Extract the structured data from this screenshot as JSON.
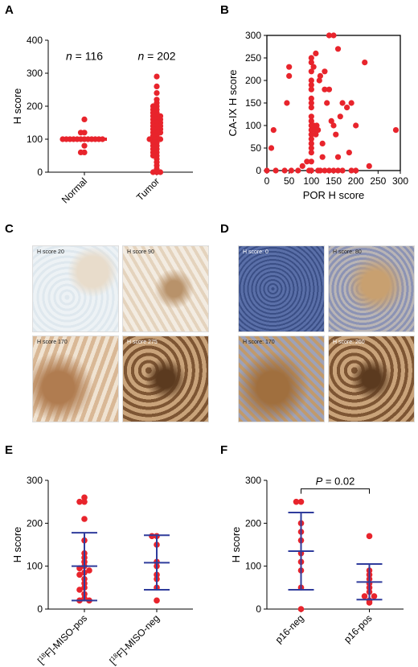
{
  "panels": {
    "A": {
      "letter": "A",
      "chart_data": {
        "type": "scatter",
        "ylabel": "H score",
        "ylim": [
          0,
          400
        ],
        "yticks": [
          0,
          100,
          200,
          300,
          400
        ],
        "categories": [
          "Normal",
          "Tumor"
        ],
        "annotations": [
          "n = 116",
          "n = 202"
        ],
        "groups": [
          {
            "category": "Normal",
            "median": 100,
            "values": [
              160,
              120,
              120,
              100,
              100,
              100,
              100,
              100,
              100,
              100,
              100,
              100,
              100,
              100,
              100,
              80,
              60,
              60
            ]
          },
          {
            "category": "Tumor",
            "values": [
              290,
              260,
              240,
              220,
              210,
              200,
              200,
              190,
              190,
              180,
              180,
              170,
              170,
              170,
              160,
              160,
              160,
              150,
              150,
              150,
              140,
              140,
              140,
              130,
              130,
              130,
              120,
              120,
              120,
              110,
              110,
              100,
              100,
              100,
              100,
              90,
              90,
              80,
              80,
              70,
              70,
              60,
              60,
              50,
              50,
              40,
              30,
              20,
              10,
              0,
              0,
              0
            ]
          }
        ],
        "point_color": "#e8242c"
      }
    },
    "B": {
      "letter": "B",
      "chart_data": {
        "type": "scatter",
        "xlabel": "POR H score",
        "ylabel": "CA-IX H score",
        "xlim": [
          0,
          300
        ],
        "ylim": [
          0,
          300
        ],
        "xticks": [
          0,
          50,
          100,
          150,
          200,
          250,
          300
        ],
        "yticks": [
          0,
          50,
          100,
          150,
          200,
          250,
          300
        ],
        "points": [
          [
            0,
            0
          ],
          [
            10,
            50
          ],
          [
            15,
            90
          ],
          [
            20,
            0
          ],
          [
            40,
            0
          ],
          [
            45,
            150
          ],
          [
            50,
            230
          ],
          [
            50,
            210
          ],
          [
            55,
            0
          ],
          [
            70,
            0
          ],
          [
            80,
            10
          ],
          [
            90,
            20
          ],
          [
            95,
            0
          ],
          [
            100,
            250
          ],
          [
            100,
            240
          ],
          [
            100,
            220
          ],
          [
            100,
            200
          ],
          [
            100,
            190
          ],
          [
            100,
            180
          ],
          [
            100,
            160
          ],
          [
            100,
            150
          ],
          [
            100,
            140
          ],
          [
            100,
            120
          ],
          [
            100,
            110
          ],
          [
            100,
            100
          ],
          [
            100,
            90
          ],
          [
            100,
            80
          ],
          [
            100,
            70
          ],
          [
            100,
            60
          ],
          [
            100,
            50
          ],
          [
            100,
            40
          ],
          [
            100,
            20
          ],
          [
            100,
            0
          ],
          [
            105,
            230
          ],
          [
            105,
            100
          ],
          [
            108,
            90
          ],
          [
            110,
            260
          ],
          [
            110,
            80
          ],
          [
            112,
            100
          ],
          [
            115,
            90
          ],
          [
            115,
            0
          ],
          [
            118,
            200
          ],
          [
            120,
            210
          ],
          [
            120,
            0
          ],
          [
            125,
            60
          ],
          [
            125,
            30
          ],
          [
            130,
            220
          ],
          [
            130,
            180
          ],
          [
            130,
            0
          ],
          [
            135,
            150
          ],
          [
            140,
            300
          ],
          [
            140,
            180
          ],
          [
            140,
            0
          ],
          [
            145,
            110
          ],
          [
            150,
            300
          ],
          [
            150,
            100
          ],
          [
            150,
            0
          ],
          [
            155,
            80
          ],
          [
            160,
            270
          ],
          [
            160,
            30
          ],
          [
            160,
            0
          ],
          [
            165,
            120
          ],
          [
            170,
            150
          ],
          [
            170,
            0
          ],
          [
            180,
            140
          ],
          [
            185,
            40
          ],
          [
            190,
            150
          ],
          [
            190,
            0
          ],
          [
            200,
            100
          ],
          [
            200,
            0
          ],
          [
            220,
            240
          ],
          [
            230,
            10
          ],
          [
            290,
            90
          ]
        ],
        "point_color": "#e8242c"
      }
    },
    "C": {
      "letter": "C",
      "images": [
        {
          "label": "H score 20",
          "tone": "light"
        },
        {
          "label": "H score 90",
          "tone": "light-brown"
        },
        {
          "label": "H score 170",
          "tone": "brown"
        },
        {
          "label": "H score 275",
          "tone": "dark-brown"
        }
      ]
    },
    "D": {
      "letter": "D",
      "images": [
        {
          "label": "H score: 0",
          "tone": "blue"
        },
        {
          "label": "H score: 80",
          "tone": "blue-tan"
        },
        {
          "label": "H score: 170",
          "tone": "tan"
        },
        {
          "label": "H score: 260",
          "tone": "dark-brown"
        }
      ]
    },
    "E": {
      "letter": "E",
      "chart_data": {
        "type": "scatter",
        "ylabel": "H score",
        "ylim": [
          0,
          300
        ],
        "yticks": [
          0,
          100,
          200,
          300
        ],
        "categories": [
          "[18F]-MISO-pos",
          "[18F]-MISO-neg"
        ],
        "groups": [
          {
            "category": "[18F]-MISO-pos",
            "mean": 100,
            "sd_low": 20,
            "sd_high": 178,
            "values": [
              260,
              250,
              250,
              210,
              160,
              130,
              120,
              110,
              100,
              95,
              90,
              85,
              80,
              70,
              60,
              50,
              45,
              35,
              25,
              20,
              20
            ]
          },
          {
            "category": "[18F]-MISO-neg",
            "mean": 108,
            "sd_low": 45,
            "sd_high": 172,
            "values": [
              170,
              170,
              150,
              110,
              100,
              80,
              70,
              50,
              20
            ]
          }
        ],
        "point_color": "#e8242c",
        "bar_color": "#2f3c9c"
      }
    },
    "F": {
      "letter": "F",
      "chart_data": {
        "type": "scatter",
        "ylabel": "H score",
        "ylim": [
          0,
          300
        ],
        "yticks": [
          0,
          100,
          200,
          300
        ],
        "categories": [
          "p16-neg",
          "p16-pos"
        ],
        "annotation": "P = 0.02",
        "groups": [
          {
            "category": "p16-neg",
            "mean": 135,
            "sd_low": 45,
            "sd_high": 225,
            "values": [
              250,
              250,
              200,
              180,
              160,
              130,
              110,
              90,
              50,
              0
            ]
          },
          {
            "category": "p16-pos",
            "mean": 63,
            "sd_low": 22,
            "sd_high": 105,
            "values": [
              170,
              90,
              80,
              70,
              60,
              50,
              40,
              30,
              30,
              20,
              15
            ]
          }
        ],
        "point_color": "#e8242c",
        "bar_color": "#2f3c9c"
      }
    }
  }
}
